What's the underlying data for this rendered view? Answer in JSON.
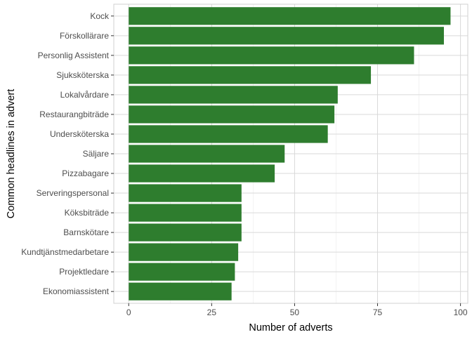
{
  "chart_data": {
    "type": "bar",
    "orientation": "horizontal",
    "categories": [
      "Kock",
      "Förskollärare",
      "Personlig Assistent",
      "Sjuksköterska",
      "Lokalvårdare",
      "Restaurangbiträde",
      "Undersköterska",
      "Säljare",
      "Pizzabagare",
      "Serveringspersonal",
      "Köksbiträde",
      "Barnskötare",
      "Kundtjänstmedarbetare",
      "Projektledare",
      "Ekonomiassistent"
    ],
    "values": [
      97,
      95,
      86,
      73,
      63,
      62,
      60,
      47,
      44,
      34,
      34,
      34,
      33,
      32,
      31
    ],
    "xlabel": "Number of adverts",
    "ylabel": "Common headlines in advert",
    "xlim": [
      0,
      100
    ],
    "xticks": [
      0,
      25,
      50,
      75,
      100
    ],
    "grid": true,
    "bar_color": "#2e7d2e",
    "theme": "light"
  }
}
